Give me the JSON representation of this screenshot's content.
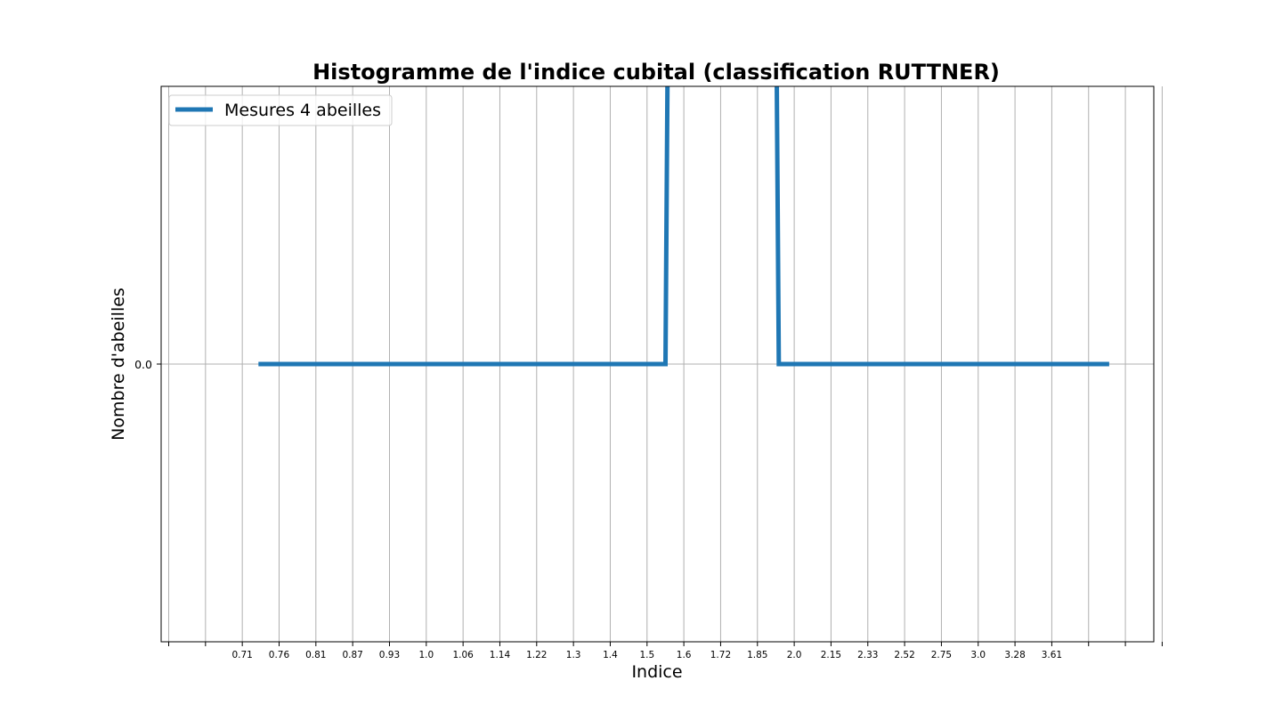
{
  "chart_data": {
    "type": "line",
    "title": "Histogramme de l'indice cubital (classification RUTTNER)",
    "xlabel": "Indice",
    "ylabel": "Nombre d'abeilles",
    "x_tick_labels": [
      "",
      "",
      "0.71",
      "0.76",
      "0.81",
      "0.87",
      "0.93",
      "1.0",
      "1.06",
      "1.14",
      "1.22",
      "1.3",
      "1.4",
      "1.5",
      "1.6",
      "1.72",
      "1.85",
      "2.0",
      "2.15",
      "2.33",
      "2.52",
      "2.75",
      "3.0",
      "3.28",
      "3.61",
      "",
      "",
      ""
    ],
    "y_tick_labels": [
      "0.0"
    ],
    "y_tick_values": [
      0.0
    ],
    "ylim": [
      -1.0,
      1.0
    ],
    "grid": true,
    "legend_position": "top-left",
    "series": [
      {
        "name": "Mesures 4 abeilles",
        "color": "#1f77b4",
        "x_positions": [
          2.5,
          13.5,
          13.58,
          16.5,
          16.58,
          25.5
        ],
        "values": [
          0,
          0,
          1.5,
          1.5,
          0,
          0
        ]
      }
    ]
  }
}
